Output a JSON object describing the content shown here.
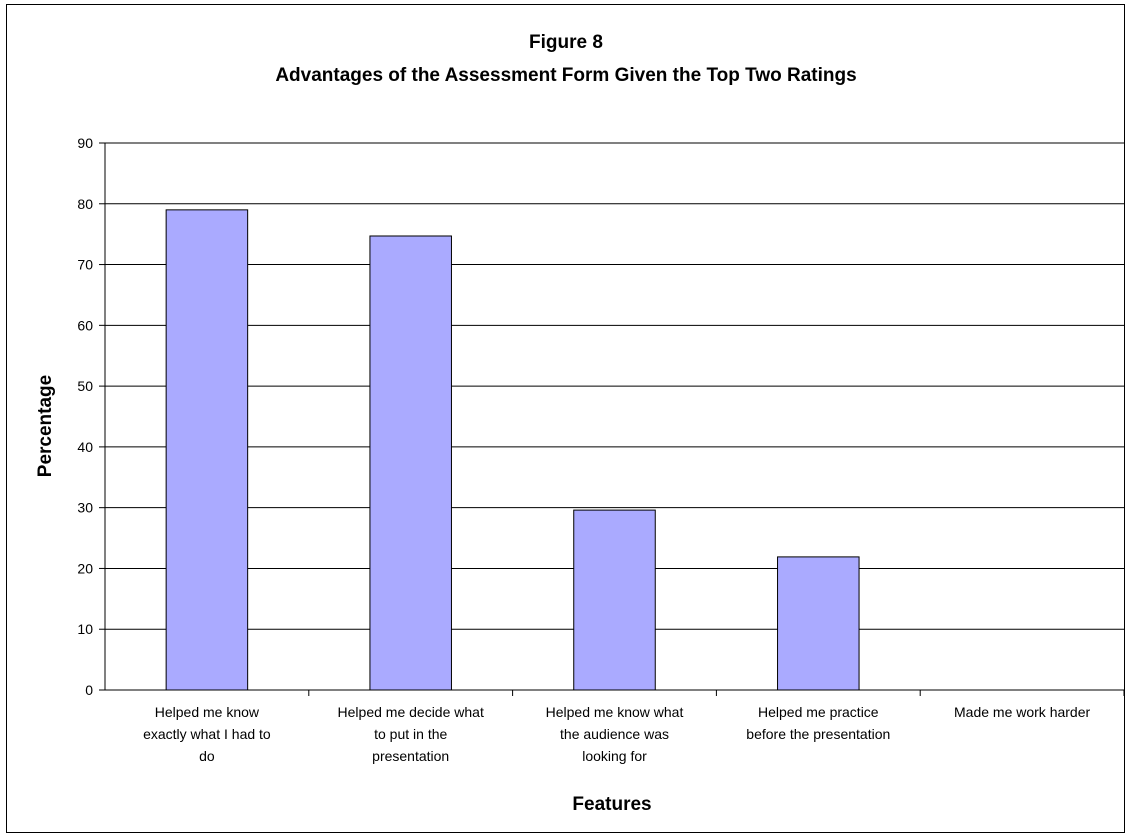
{
  "chart_data": {
    "type": "bar",
    "title": "Figure 8",
    "subtitle": "Advantages of the Assessment Form Given the Top Two Ratings",
    "xlabel": "Features",
    "ylabel": "Percentage",
    "categories": [
      [
        "Helped me know",
        "exactly what I had to",
        "do"
      ],
      [
        "Helped me decide what",
        "to put in the",
        "presentation"
      ],
      [
        "Helped me know what",
        "the audience was",
        "looking for"
      ],
      [
        "Helped me practice",
        "before the presentation"
      ],
      [
        "Made me work harder"
      ]
    ],
    "values": [
      79,
      74.7,
      29.6,
      21.9,
      0
    ],
    "ylim": [
      0,
      90
    ],
    "yticks": [
      0,
      10,
      20,
      30,
      40,
      50,
      60,
      70,
      80,
      90
    ],
    "grid": true,
    "legend": "none",
    "colors": {
      "bar_fill": "#aaaaff",
      "bar_stroke": "#000000",
      "grid": "#000000",
      "axis": "#000000"
    }
  }
}
